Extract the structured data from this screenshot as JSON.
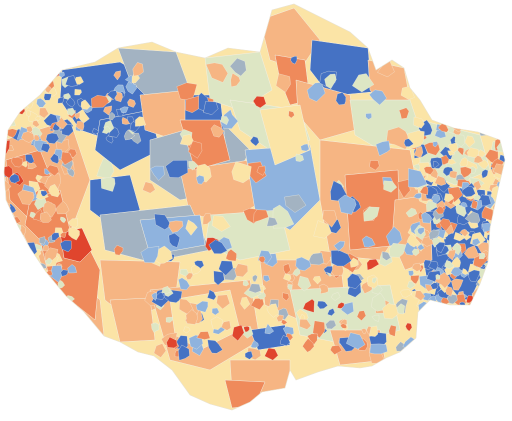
{
  "map": {
    "type": "choropleth",
    "palette": {
      "dark_blue": "#4572c4",
      "light_blue": "#8fb3de",
      "slate": "#a3b3c2",
      "pale_green": "#dde6c4",
      "pale_yellow": "#fbe4a6",
      "light_orange": "#f6b583",
      "orange": "#ef8a5b",
      "red": "#e0452d"
    },
    "background": "#ffffff"
  }
}
